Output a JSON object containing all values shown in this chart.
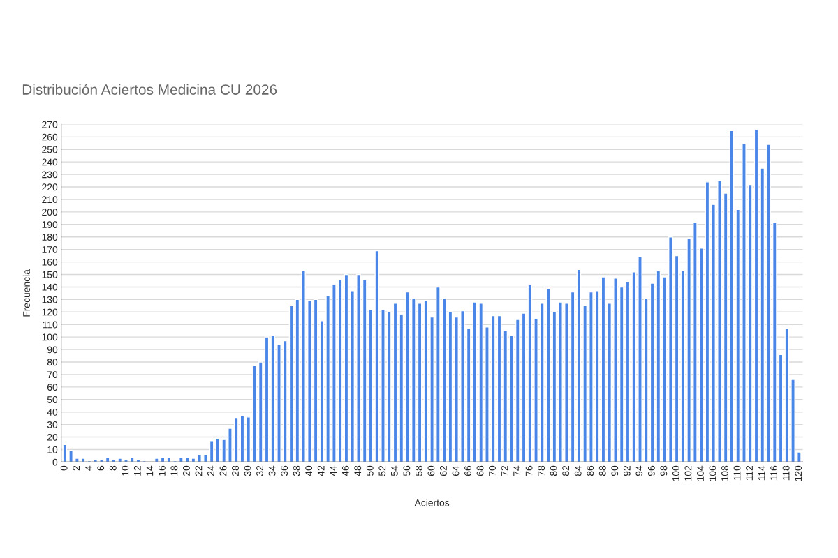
{
  "chart_data": {
    "type": "bar",
    "title": "Distribución Aciertos Medicina CU 2026",
    "xlabel": "Aciertos",
    "ylabel": "Frecuencia",
    "categories": [
      "0",
      null,
      "2",
      null,
      "4",
      null,
      "6",
      null,
      "8",
      null,
      "10",
      null,
      "12",
      null,
      "14",
      null,
      "16",
      null,
      "18",
      null,
      "20",
      null,
      "22",
      null,
      "24",
      null,
      "26",
      null,
      "28",
      null,
      "30",
      null,
      "32",
      null,
      "34",
      null,
      "36",
      null,
      "38",
      null,
      "40",
      null,
      "42",
      null,
      "44",
      null,
      "46",
      null,
      "48",
      null,
      "50",
      null,
      "52",
      null,
      "54",
      null,
      "56",
      null,
      "58",
      null,
      "60",
      null,
      "62",
      null,
      "64",
      null,
      "66",
      null,
      "68",
      null,
      "70",
      null,
      "72",
      null,
      "74",
      null,
      "76",
      null,
      "78",
      null,
      "80",
      null,
      "82",
      null,
      "84",
      null,
      "86",
      null,
      "88",
      null,
      "90",
      null,
      "92",
      null,
      "94",
      null,
      "96",
      null,
      "98",
      null,
      "100",
      null,
      "102",
      null,
      "104",
      null,
      "106",
      null,
      "108",
      null,
      "110",
      null,
      "112",
      null,
      "114",
      null,
      "116",
      null,
      "118",
      null,
      "120"
    ],
    "values": [
      14,
      9,
      3,
      3,
      1,
      2,
      2,
      4,
      2,
      3,
      2,
      4,
      2,
      1,
      null,
      3,
      4,
      4,
      1,
      4,
      4,
      3,
      6,
      6,
      17,
      19,
      18,
      27,
      35,
      37,
      36,
      77,
      80,
      100,
      101,
      94,
      97,
      125,
      130,
      153,
      129,
      130,
      113,
      133,
      142,
      146,
      150,
      137,
      150,
      146,
      122,
      169,
      122,
      120,
      127,
      118,
      136,
      131,
      127,
      129,
      116,
      140,
      131,
      120,
      116,
      121,
      107,
      128,
      127,
      108,
      117,
      117,
      105,
      101,
      114,
      119,
      142,
      115,
      127,
      139,
      120,
      128,
      127,
      136,
      154,
      125,
      136,
      137,
      148,
      127,
      147,
      140,
      144,
      152,
      164,
      131,
      143,
      153,
      148,
      180,
      165,
      153,
      179,
      192,
      171,
      224,
      206,
      225,
      215,
      265,
      202,
      255,
      222,
      266,
      235,
      254,
      192,
      86,
      107,
      66,
      8
    ],
    "color": "#4a86e8",
    "ylim": [
      0,
      270
    ],
    "yticks": [
      0,
      10,
      20,
      30,
      40,
      50,
      60,
      70,
      80,
      90,
      100,
      110,
      120,
      130,
      140,
      150,
      160,
      170,
      180,
      190,
      200,
      210,
      220,
      230,
      240,
      250,
      260,
      270
    ],
    "grid": "y",
    "legend": false
  }
}
